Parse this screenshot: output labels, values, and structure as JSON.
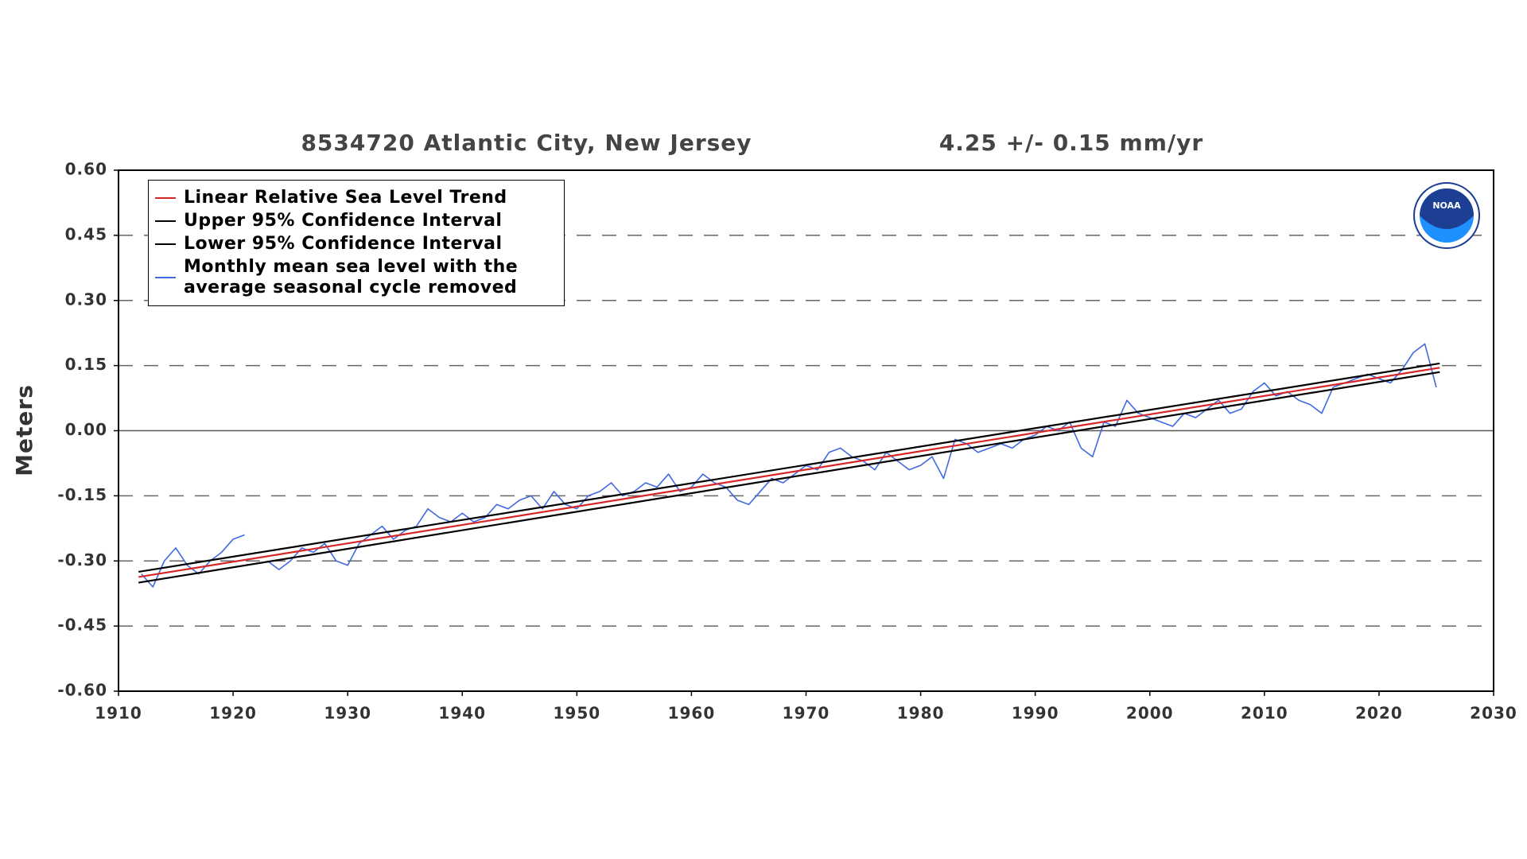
{
  "chart_data": {
    "type": "line",
    "title": "8534720 Atlantic City, New Jersey",
    "subtitle": "4.25 +/-  0.15 mm/yr",
    "y_label": "Meters",
    "xlim": [
      1910,
      2030
    ],
    "xticks": [
      1910,
      1920,
      1930,
      1940,
      1950,
      1960,
      1970,
      1980,
      1990,
      2000,
      2010,
      2020,
      2030
    ],
    "ylim": [
      -0.6,
      0.6
    ],
    "yticks": [
      {
        "value": 0.6,
        "label": "0.60"
      },
      {
        "value": 0.45,
        "label": "0.45"
      },
      {
        "value": 0.3,
        "label": "0.30"
      },
      {
        "value": 0.15,
        "label": "0.15"
      },
      {
        "value": 0,
        "label": "0.00"
      },
      {
        "value": -0.15,
        "label": "-0.15"
      },
      {
        "value": -0.3,
        "label": "-0.30"
      },
      {
        "value": -0.45,
        "label": "-0.45"
      },
      {
        "value": -0.6,
        "label": "-0.60"
      }
    ],
    "grid": true,
    "legend": "upper left",
    "series": [
      {
        "name": "Linear Relative Sea Level Trend",
        "color": "#d62728",
        "x": [
          1911.75,
          2025.3
        ],
        "values": [
          -0.337,
          0.145
        ]
      },
      {
        "name": "Upper 95% Confidence Interval",
        "color": "#000000",
        "x": [
          1911.75,
          2025.3
        ],
        "values": [
          -0.325,
          0.155
        ]
      },
      {
        "name": "Lower 95% Confidence Interval",
        "color": "#000000",
        "x": [
          1911.75,
          2025.3
        ],
        "values": [
          -0.35,
          0.135
        ]
      },
      {
        "name": "Monthly mean sea level with the average seasonal cycle removed",
        "color": "#4169e1",
        "x": [
          1912,
          1913,
          1914,
          1915,
          1916,
          1917,
          1918,
          1919,
          1920,
          1921,
          1922,
          1923,
          1924,
          1925,
          1926,
          1927,
          1928,
          1929,
          1930,
          1931,
          1932,
          1933,
          1934,
          1935,
          1936,
          1937,
          1938,
          1939,
          1940,
          1941,
          1942,
          1943,
          1944,
          1945,
          1946,
          1947,
          1948,
          1949,
          1950,
          1951,
          1952,
          1953,
          1954,
          1955,
          1956,
          1957,
          1958,
          1959,
          1960,
          1961,
          1962,
          1963,
          1964,
          1965,
          1966,
          1967,
          1968,
          1969,
          1970,
          1971,
          1972,
          1973,
          1974,
          1975,
          1976,
          1977,
          1978,
          1979,
          1980,
          1981,
          1982,
          1983,
          1984,
          1985,
          1986,
          1987,
          1988,
          1989,
          1990,
          1991,
          1992,
          1993,
          1994,
          1995,
          1996,
          1997,
          1998,
          1999,
          2000,
          2001,
          2002,
          2003,
          2004,
          2005,
          2006,
          2007,
          2008,
          2009,
          2010,
          2011,
          2012,
          2013,
          2014,
          2015,
          2016,
          2017,
          2018,
          2019,
          2020,
          2021,
          2022,
          2023,
          2024,
          2025
        ],
        "values": [
          -0.33,
          -0.36,
          -0.3,
          -0.27,
          -0.31,
          -0.33,
          -0.3,
          -0.28,
          -0.25,
          -0.24,
          null,
          -0.3,
          -0.32,
          -0.3,
          -0.27,
          -0.28,
          -0.26,
          -0.3,
          -0.31,
          -0.26,
          -0.24,
          -0.22,
          -0.25,
          -0.23,
          -0.22,
          -0.18,
          -0.2,
          -0.21,
          -0.19,
          -0.21,
          -0.2,
          -0.17,
          -0.18,
          -0.16,
          -0.15,
          -0.18,
          -0.14,
          -0.17,
          -0.18,
          -0.15,
          -0.14,
          -0.12,
          -0.15,
          -0.14,
          -0.12,
          -0.13,
          -0.1,
          -0.14,
          -0.13,
          -0.1,
          -0.12,
          -0.13,
          -0.16,
          -0.17,
          -0.14,
          -0.11,
          -0.12,
          -0.1,
          -0.08,
          -0.09,
          -0.05,
          -0.04,
          -0.06,
          -0.07,
          -0.09,
          -0.05,
          -0.07,
          -0.09,
          -0.08,
          -0.06,
          -0.11,
          -0.02,
          -0.03,
          -0.05,
          -0.04,
          -0.03,
          -0.04,
          -0.02,
          -0.01,
          0.01,
          0,
          0.02,
          -0.04,
          -0.06,
          0.02,
          0.01,
          0.07,
          0.04,
          0.03,
          0.02,
          0.01,
          0.04,
          0.03,
          0.05,
          0.07,
          0.04,
          0.05,
          0.09,
          0.11,
          0.08,
          0.09,
          0.07,
          0.06,
          0.04,
          0.1,
          0.11,
          0.12,
          0.13,
          0.12,
          0.11,
          0.14,
          0.18,
          0.2,
          0.1
        ]
      }
    ]
  }
}
